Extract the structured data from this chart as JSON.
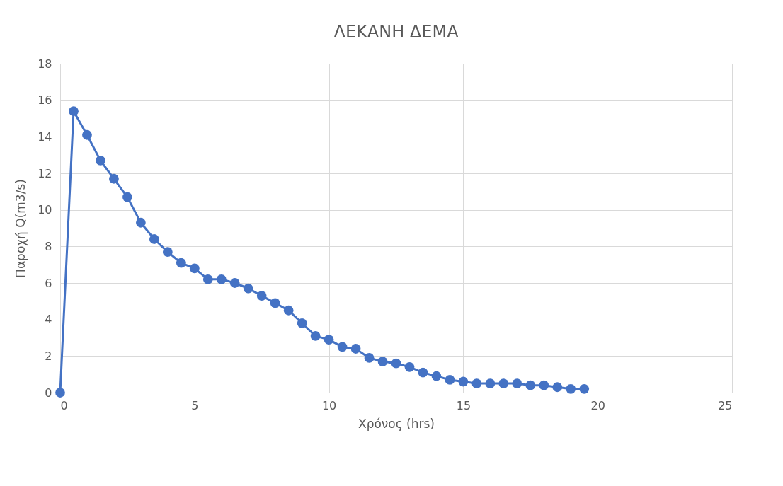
{
  "chart_data": {
    "type": "line",
    "title": "ΛΕΚΑΝΗ ΔΕΜΑ",
    "xlabel": "Χρόνος (hrs)",
    "ylabel": "Παροχή  Q(m3/s)",
    "x": [
      0,
      0.5,
      1,
      1.5,
      2,
      2.5,
      3,
      3.5,
      4,
      4.5,
      5,
      5.5,
      6,
      6.5,
      7,
      7.5,
      8,
      8.5,
      9,
      9.5,
      10,
      10.5,
      11,
      11.5,
      12,
      12.5,
      13,
      13.5,
      14,
      14.5,
      15,
      15.5,
      16,
      16.5,
      17,
      17.5,
      18,
      18.5,
      19,
      19.5
    ],
    "series": [
      {
        "color": "#4472c4",
        "values": [
          0,
          15.4,
          14.1,
          12.7,
          11.7,
          10.7,
          9.3,
          8.4,
          7.7,
          7.1,
          6.8,
          6.2,
          6.2,
          6.0,
          5.7,
          5.3,
          4.9,
          4.5,
          3.8,
          3.1,
          2.9,
          2.5,
          2.4,
          1.9,
          1.7,
          1.6,
          1.4,
          1.1,
          0.9,
          0.7,
          0.6,
          0.5,
          0.5,
          0.5,
          0.5,
          0.4,
          0.4,
          0.3,
          0.2,
          0.2
        ]
      }
    ],
    "xlim": [
      0,
      25
    ],
    "xticks": [
      0,
      5,
      10,
      15,
      20,
      25
    ],
    "ylim": [
      0,
      18
    ],
    "yticks": [
      0,
      2,
      4,
      6,
      8,
      10,
      12,
      14,
      16,
      18
    ],
    "grid": true,
    "marker": "circle",
    "line_style": "solid"
  }
}
